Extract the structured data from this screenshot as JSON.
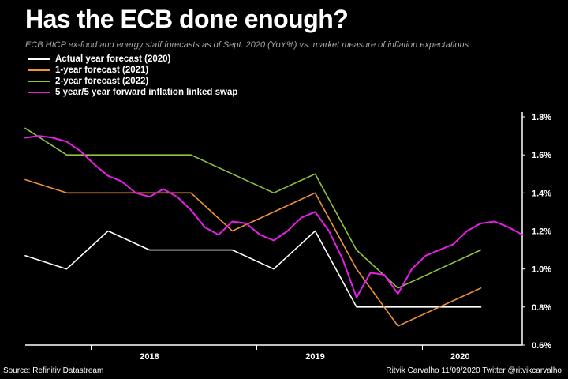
{
  "header": {
    "title": "Has the ECB done enough?",
    "subtitle": "ECB HICP ex-food and energy staff forecasts as of Sept. 2020 (YoY%) vs. market measure of inflation expectations"
  },
  "footer": {
    "source": "Source: Refinitiv Datastream",
    "credit": "Ritvik Carvalho 11/09/2020 Twitter @ritvikcarvalho"
  },
  "chart_data": {
    "type": "line",
    "title": "Has the ECB done enough?",
    "subtitle": "ECB HICP ex-food and energy staff forecasts as of Sept. 2020 (YoY%) vs. market measure of inflation expectations",
    "xlabel": "",
    "ylabel": "",
    "x_ticks": [
      "2018",
      "2019",
      "2020"
    ],
    "x_range": [
      "2017-09",
      "2020-09"
    ],
    "ylim": [
      0.6,
      1.8
    ],
    "y_ticks": [
      0.6,
      0.8,
      1.0,
      1.2,
      1.4,
      1.6,
      1.8
    ],
    "y_tick_labels": [
      "0.6%",
      "0.8%",
      "1.0%",
      "1.2%",
      "1.4%",
      "1.6%",
      "1.8%"
    ],
    "y_axis_side": "right",
    "grid": false,
    "legend_position": "top-left",
    "series": [
      {
        "name": "Actual year forecast (2020)",
        "color": "#ffffff",
        "points": [
          [
            "2017-09",
            1.07
          ],
          [
            "2017-12",
            1.0
          ],
          [
            "2018-03",
            1.2
          ],
          [
            "2018-06",
            1.1
          ],
          [
            "2018-09",
            1.1
          ],
          [
            "2018-12",
            1.1
          ],
          [
            "2019-03",
            1.0
          ],
          [
            "2019-06",
            1.2
          ],
          [
            "2019-09",
            0.8
          ],
          [
            "2019-12",
            0.8
          ],
          [
            "2020-03",
            0.8
          ],
          [
            "2020-06",
            0.8
          ]
        ]
      },
      {
        "name": "1-year forecast (2021)",
        "color": "#f0923a",
        "points": [
          [
            "2017-09",
            1.47
          ],
          [
            "2017-12",
            1.4
          ],
          [
            "2018-03",
            1.4
          ],
          [
            "2018-06",
            1.4
          ],
          [
            "2018-09",
            1.4
          ],
          [
            "2018-12",
            1.2
          ],
          [
            "2019-03",
            1.3
          ],
          [
            "2019-06",
            1.4
          ],
          [
            "2019-09",
            1.0
          ],
          [
            "2019-12",
            0.7
          ],
          [
            "2020-03",
            0.8
          ],
          [
            "2020-06",
            0.9
          ]
        ]
      },
      {
        "name": "2-year forecast (2022)",
        "color": "#8fc43c",
        "points": [
          [
            "2017-09",
            1.74
          ],
          [
            "2017-12",
            1.6
          ],
          [
            "2018-03",
            1.6
          ],
          [
            "2018-06",
            1.6
          ],
          [
            "2018-09",
            1.6
          ],
          [
            "2018-12",
            1.5
          ],
          [
            "2019-03",
            1.4
          ],
          [
            "2019-06",
            1.5
          ],
          [
            "2019-09",
            1.1
          ],
          [
            "2019-12",
            0.9
          ],
          [
            "2020-03",
            1.0
          ],
          [
            "2020-06",
            1.1
          ]
        ]
      },
      {
        "name": "5 year/5 year forward inflation linked swap",
        "color": "#e81fe8",
        "points": [
          [
            "2017-09",
            1.69
          ],
          [
            "2017-10",
            1.7
          ],
          [
            "2017-11",
            1.69
          ],
          [
            "2017-12",
            1.67
          ],
          [
            "2018-01",
            1.62
          ],
          [
            "2018-02",
            1.55
          ],
          [
            "2018-03",
            1.49
          ],
          [
            "2018-04",
            1.46
          ],
          [
            "2018-05",
            1.4
          ],
          [
            "2018-06",
            1.38
          ],
          [
            "2018-07",
            1.42
          ],
          [
            "2018-08",
            1.38
          ],
          [
            "2018-09",
            1.31
          ],
          [
            "2018-10",
            1.22
          ],
          [
            "2018-11",
            1.18
          ],
          [
            "2018-12",
            1.25
          ],
          [
            "2019-01",
            1.24
          ],
          [
            "2019-02",
            1.18
          ],
          [
            "2019-03",
            1.15
          ],
          [
            "2019-04",
            1.2
          ],
          [
            "2019-05",
            1.27
          ],
          [
            "2019-06",
            1.3
          ],
          [
            "2019-07",
            1.2
          ],
          [
            "2019-08",
            1.05
          ],
          [
            "2019-09",
            0.85
          ],
          [
            "2019-10",
            0.98
          ],
          [
            "2019-11",
            0.97
          ],
          [
            "2019-12",
            0.87
          ],
          [
            "2020-01",
            1.0
          ],
          [
            "2020-02",
            1.07
          ],
          [
            "2020-03",
            1.1
          ],
          [
            "2020-04",
            1.13
          ],
          [
            "2020-05",
            1.2
          ],
          [
            "2020-06",
            1.24
          ],
          [
            "2020-07",
            1.25
          ],
          [
            "2020-08",
            1.22
          ],
          [
            "2020-09",
            1.18
          ]
        ]
      }
    ]
  }
}
